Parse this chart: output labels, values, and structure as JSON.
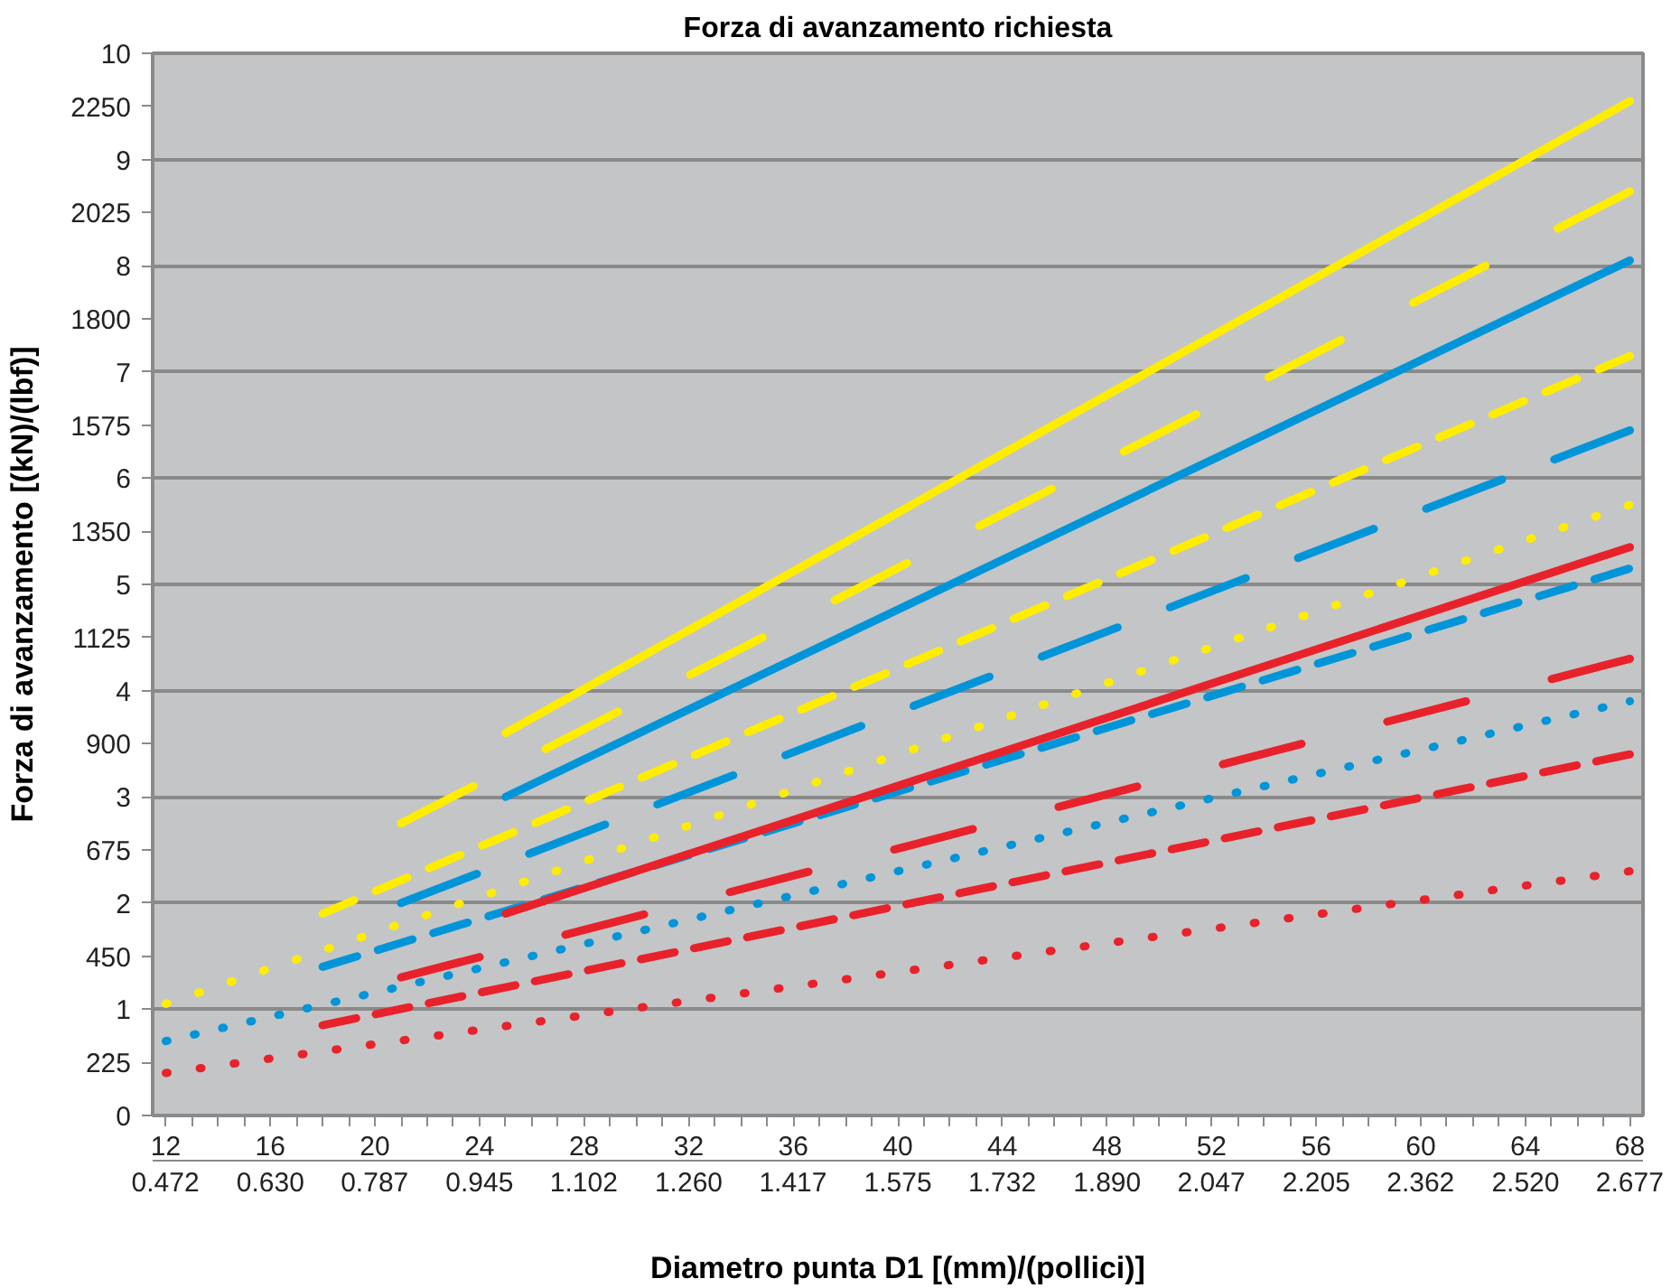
{
  "chart_data": {
    "type": "line",
    "title": "Forza di avanzamento richiesta",
    "xlabel": "Diametro punta D1 [(mm)/(pollici)]",
    "y2label": "Forza di avanzamento [(kN)/(lbf)]",
    "xlim": [
      11.5,
      68.5
    ],
    "ylim": [
      0,
      10
    ],
    "xticks": [
      12,
      {
        "value": 13,
        "label": null
      },
      {
        "value": 14,
        "label": null
      },
      {
        "value": 15,
        "label": null
      },
      16,
      {
        "value": 17,
        "label": null
      },
      {
        "value": 18,
        "label": null
      },
      {
        "value": 19,
        "label": null
      },
      20,
      {
        "value": 21,
        "label": null
      },
      {
        "value": 22,
        "label": null
      },
      {
        "value": 23,
        "label": null
      },
      24,
      {
        "value": 25,
        "label": null
      },
      {
        "value": 26,
        "label": null
      },
      {
        "value": 27,
        "label": null
      },
      28,
      {
        "value": 29,
        "label": null
      },
      {
        "value": 30,
        "label": null
      },
      {
        "value": 31,
        "label": null
      },
      32,
      {
        "value": 33,
        "label": null
      },
      {
        "value": 34,
        "label": null
      },
      {
        "value": 35,
        "label": null
      },
      36,
      {
        "value": 37,
        "label": null
      },
      {
        "value": 38,
        "label": null
      },
      {
        "value": 39,
        "label": null
      },
      40,
      {
        "value": 41,
        "label": null
      },
      {
        "value": 42,
        "label": null
      },
      {
        "value": 43,
        "label": null
      },
      44,
      {
        "value": 45,
        "label": null
      },
      {
        "value": 46,
        "label": null
      },
      {
        "value": 47,
        "label": null
      },
      48,
      {
        "value": 49,
        "label": null
      },
      {
        "value": 50,
        "label": null
      },
      {
        "value": 51,
        "label": null
      },
      52,
      {
        "value": 53,
        "label": null
      },
      {
        "value": 54,
        "label": null
      },
      {
        "value": 55,
        "label": null
      },
      56,
      {
        "value": 57,
        "label": null
      },
      {
        "value": 58,
        "label": null
      },
      {
        "value": 59,
        "label": null
      },
      60,
      {
        "value": 61,
        "label": null
      },
      {
        "value": 62,
        "label": null
      },
      {
        "value": 63,
        "label": null
      },
      64,
      {
        "value": 65,
        "label": null
      },
      {
        "value": 66,
        "label": null
      },
      {
        "value": 67,
        "label": null
      },
      68
    ],
    "x2lim": [
      0.4528,
      2.6969
    ],
    "x2ticks": [
      0.472,
      {
        "value": 0.63,
        "label": "0.630"
      },
      0.787,
      0.945,
      1.102,
      {
        "value": 1.26,
        "label": "1.260"
      },
      1.417,
      1.575,
      1.732,
      {
        "value": 1.89,
        "label": "1.890"
      },
      2.047,
      2.205,
      2.362,
      {
        "value": 2.52,
        "label": "2.520"
      },
      2.677
    ],
    "yticks": [
      0,
      1,
      2,
      3,
      4,
      5,
      6,
      7,
      8,
      9,
      10
    ],
    "y2lim": [
      112.5,
      2362.5
    ],
    "y2ticks": [
      225,
      450,
      675,
      900,
      1125,
      1350,
      1575,
      1800,
      2025,
      2250
    ],
    "grid": "y",
    "marker": "none",
    "series": [
      {
        "color": "#ffed00",
        "line_style": "solid",
        "x": [
          25,
          68
        ],
        "values": [
          3.6,
          9.55
        ]
      },
      {
        "color": "#ffed00",
        "line_style": "longdash",
        "x": [
          21,
          68
        ],
        "values": [
          2.75,
          8.7
        ]
      },
      {
        "color": "#ffed00",
        "line_style": "dashed",
        "x": [
          18,
          68
        ],
        "values": [
          1.9,
          7.15
        ]
      },
      {
        "color": "#ffed00",
        "line_style": "dotted",
        "x": [
          12,
          68
        ],
        "values": [
          1.05,
          5.75
        ]
      },
      {
        "color": "#0095d9",
        "line_style": "solid",
        "x": [
          25,
          68
        ],
        "values": [
          3.0,
          8.05
        ]
      },
      {
        "color": "#0095d9",
        "line_style": "longdash",
        "x": [
          21,
          68
        ],
        "values": [
          2.0,
          6.45
        ]
      },
      {
        "color": "#0095d9",
        "line_style": "dashed",
        "x": [
          18,
          68
        ],
        "values": [
          1.4,
          5.15
        ]
      },
      {
        "color": "#0095d9",
        "line_style": "dotted",
        "x": [
          12,
          68
        ],
        "values": [
          0.7,
          3.9
        ]
      },
      {
        "color": "#e8222b",
        "line_style": "solid",
        "x": [
          25,
          68
        ],
        "values": [
          1.9,
          5.35
        ]
      },
      {
        "color": "#e8222b",
        "line_style": "longdash",
        "x": [
          21,
          68
        ],
        "values": [
          1.3,
          4.3
        ]
      },
      {
        "color": "#e8222b",
        "line_style": "dashed",
        "x": [
          18,
          68
        ],
        "values": [
          0.85,
          3.4
        ]
      },
      {
        "color": "#e8222b",
        "line_style": "dotted",
        "x": [
          12,
          68
        ],
        "values": [
          0.4,
          2.3
        ]
      }
    ]
  }
}
